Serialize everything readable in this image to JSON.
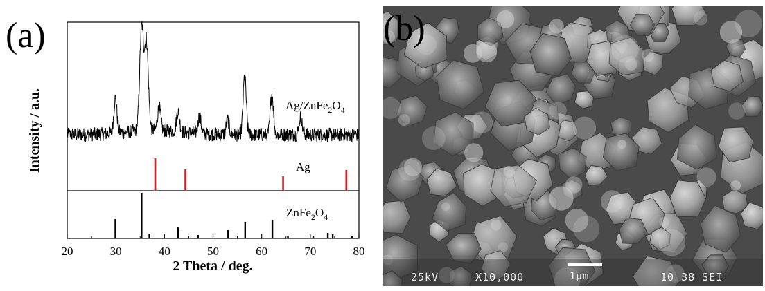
{
  "panel_a_label": "(a)",
  "panel_b_label": "(b)",
  "chart_data": {
    "type": "line",
    "title": "",
    "xlabel": "2 Theta / deg.",
    "ylabel": "Intensity / a.u.",
    "xlim": [
      20,
      80
    ],
    "xticks": [
      "20",
      "30",
      "40",
      "50",
      "60",
      "70",
      "80"
    ],
    "grid": false,
    "series": [
      {
        "name": "Ag/ZnFe2O4",
        "label_base": "Ag/ZnFe",
        "label_sub1": "2",
        "label_mid": "O",
        "label_sub2": "4",
        "kind": "pattern",
        "color": "#000000",
        "baseline": 0.18,
        "noise": 0.12,
        "peaks": [
          {
            "x": 29.9,
            "h": 0.6
          },
          {
            "x": 35.3,
            "h": 1.75
          },
          {
            "x": 36.3,
            "h": 1.5
          },
          {
            "x": 38.9,
            "h": 0.4
          },
          {
            "x": 42.8,
            "h": 0.35
          },
          {
            "x": 47.2,
            "h": 0.3
          },
          {
            "x": 53.0,
            "h": 0.25
          },
          {
            "x": 56.5,
            "h": 1.0
          },
          {
            "x": 62.1,
            "h": 0.7
          },
          {
            "x": 68.0,
            "h": 0.3
          }
        ]
      },
      {
        "name": "Ag",
        "kind": "reference",
        "color": "#d42020",
        "sticks": [
          {
            "x": 38.1,
            "h": 0.47
          },
          {
            "x": 44.3,
            "h": 0.31
          },
          {
            "x": 64.4,
            "h": 0.21
          },
          {
            "x": 77.4,
            "h": 0.3
          }
        ]
      },
      {
        "name": "ZnFe2O4",
        "label_base": "ZnFe",
        "label_sub1": "2",
        "label_mid": "O",
        "label_sub2": "4",
        "kind": "reference",
        "color": "#000000",
        "sticks": [
          {
            "x": 29.9,
            "h": 0.28
          },
          {
            "x": 35.3,
            "h": 0.66
          },
          {
            "x": 36.9,
            "h": 0.07
          },
          {
            "x": 42.8,
            "h": 0.16
          },
          {
            "x": 46.9,
            "h": 0.05
          },
          {
            "x": 53.1,
            "h": 0.12
          },
          {
            "x": 56.6,
            "h": 0.24
          },
          {
            "x": 62.2,
            "h": 0.27
          },
          {
            "x": 65.4,
            "h": 0.04
          },
          {
            "x": 70.6,
            "h": 0.04
          },
          {
            "x": 73.6,
            "h": 0.08
          },
          {
            "x": 74.6,
            "h": 0.06
          },
          {
            "x": 78.6,
            "h": 0.04
          }
        ]
      }
    ]
  },
  "sem": {
    "voltage": "25kV",
    "magnification": "X10,000",
    "scale_label": "1μm",
    "info": "10 38 SEI"
  }
}
